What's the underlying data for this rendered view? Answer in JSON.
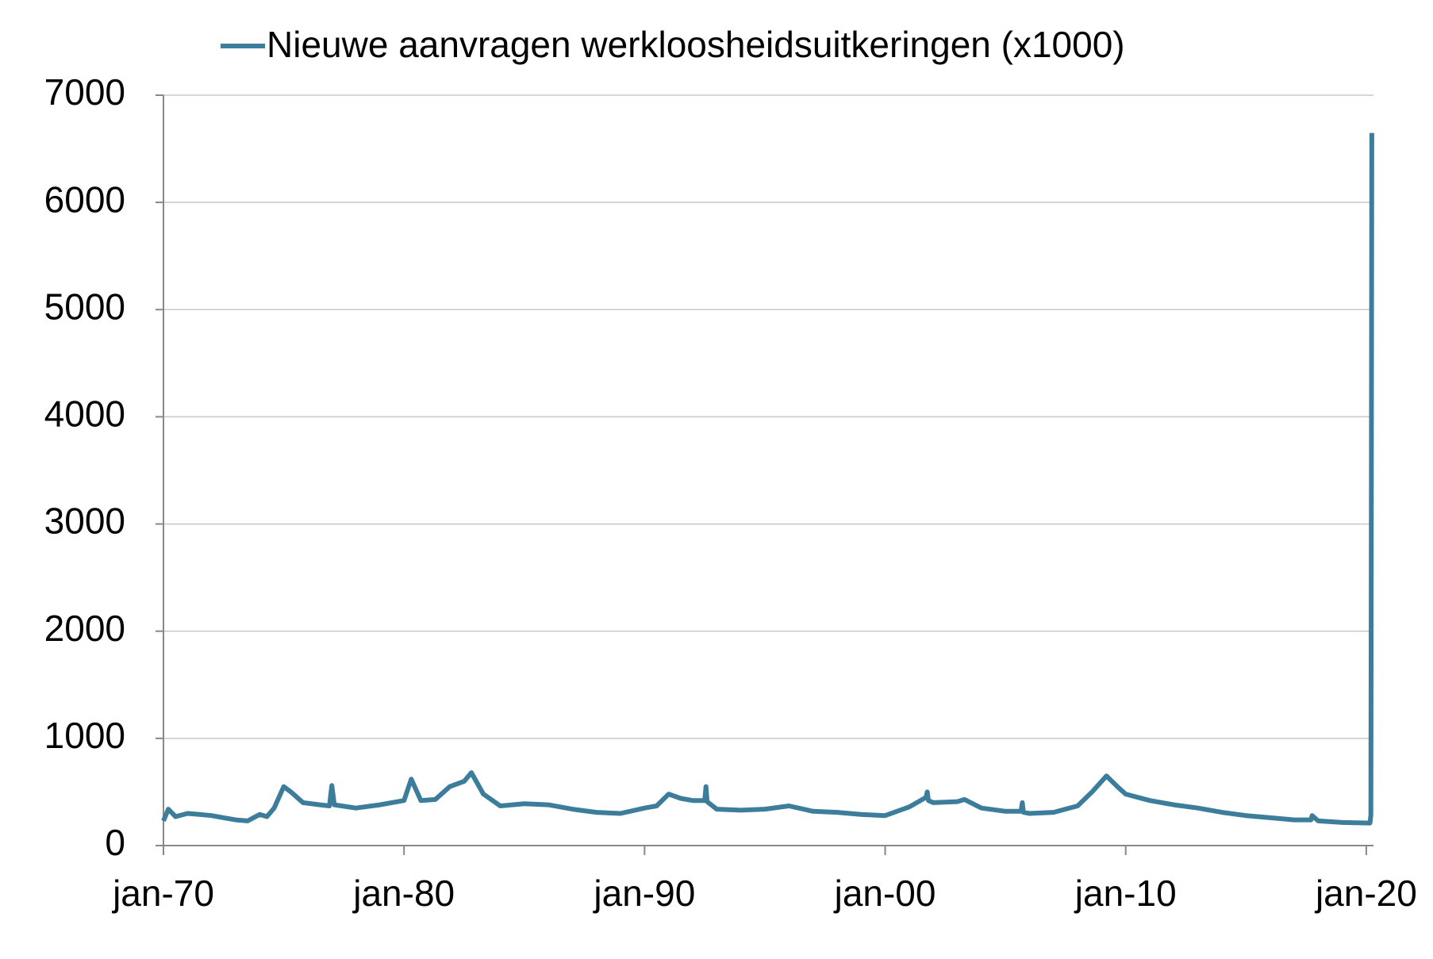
{
  "chart_data": {
    "type": "line",
    "x": [
      1970,
      1970.2,
      1970.5,
      1971,
      1971.5,
      1972,
      1972.5,
      1973,
      1973.5,
      1974,
      1974.3,
      1974.6,
      1975,
      1975.3,
      1975.8,
      1976.5,
      1976.9,
      1977,
      1977.1,
      1978,
      1979,
      1980,
      1980.3,
      1980.7,
      1981.3,
      1981.9,
      1982.5,
      1982.8,
      1983.3,
      1984,
      1985,
      1986,
      1987,
      1988,
      1989,
      1990,
      1990.5,
      1991,
      1991.5,
      1992,
      1992.5,
      1992.55,
      1992.6,
      1993,
      1994,
      1995,
      1996,
      1997,
      1998,
      1999,
      2000,
      2001,
      2001.7,
      2001.75,
      2001.8,
      2002,
      2003,
      2003.3,
      2004,
      2005,
      2005.65,
      2005.7,
      2005.75,
      2006,
      2007,
      2008,
      2008.6,
      2009.2,
      2009.7,
      2010,
      2011,
      2012,
      2013,
      2014,
      2015,
      2016,
      2017,
      2017.7,
      2017.75,
      2018,
      2019,
      2020.15,
      2020.19,
      2020.21,
      2020.23
    ],
    "series": [
      {
        "name": "Nieuwe aanvragen werkloosheidsuitkeringen (x1000)",
        "color": "#3d7d9c",
        "values": [
          230,
          340,
          270,
          300,
          290,
          280,
          260,
          240,
          230,
          290,
          270,
          350,
          550,
          500,
          400,
          380,
          370,
          560,
          380,
          350,
          380,
          420,
          620,
          420,
          430,
          550,
          600,
          680,
          480,
          370,
          390,
          380,
          340,
          310,
          300,
          350,
          370,
          480,
          440,
          420,
          420,
          550,
          410,
          340,
          330,
          340,
          370,
          320,
          310,
          290,
          280,
          360,
          450,
          500,
          420,
          400,
          410,
          430,
          350,
          320,
          320,
          400,
          310,
          300,
          310,
          370,
          500,
          650,
          540,
          480,
          420,
          380,
          350,
          310,
          280,
          260,
          240,
          240,
          280,
          230,
          215,
          210,
          282,
          3307,
          6648
        ]
      }
    ],
    "xlim": [
      1970,
      2020.3
    ],
    "xticks": [
      {
        "value": 1970,
        "label": "jan-70"
      },
      {
        "value": 1980,
        "label": "jan-80"
      },
      {
        "value": 1990,
        "label": "jan-90"
      },
      {
        "value": 2000,
        "label": "jan-00"
      },
      {
        "value": 2010,
        "label": "jan-10"
      },
      {
        "value": 2020,
        "label": "jan-20"
      }
    ],
    "ylim": [
      0,
      7000
    ],
    "yticks": [
      0,
      1000,
      2000,
      3000,
      4000,
      5000,
      6000,
      7000
    ],
    "grid": true,
    "legend": "top"
  }
}
